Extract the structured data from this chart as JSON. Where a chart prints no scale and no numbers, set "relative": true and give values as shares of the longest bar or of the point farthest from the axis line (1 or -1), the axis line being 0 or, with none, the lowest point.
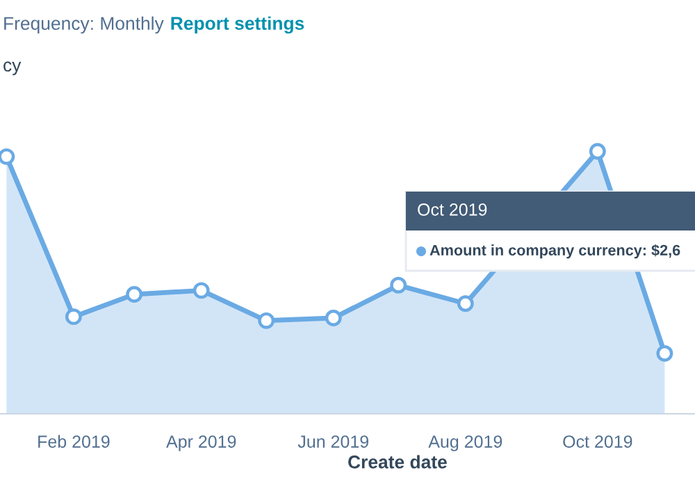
{
  "chart_data": {
    "type": "area",
    "title": "Frequency: Monthly",
    "xlabel": "Create date",
    "annotations": [
      "Report settings",
      "cy",
      "Oct 2019",
      "Amount in company currency: $2,6"
    ],
    "x": [
      "2019-01",
      "2019-02",
      "2019-03",
      "2019-04",
      "2019-05",
      "2019-06",
      "2019-07",
      "2019-08",
      "2019-09",
      "2019-10",
      "2019-11"
    ],
    "series": [
      {
        "color": "#6aaae4",
        "values": [
          0.98,
          0.37,
          0.455,
          0.47,
          0.355,
          0.365,
          0.49,
          0.42,
          null,
          1,
          0.23
        ]
      }
    ],
    "relative": true,
    "marker": "circle",
    "xlim": [
      "2018-12-29",
      "2019-11-15"
    ],
    "xticks": [
      {
        "value": "2019-02",
        "label": "Feb 2019"
      },
      {
        "value": "2019-04",
        "label": "Apr 2019"
      },
      {
        "value": "2019-06",
        "label": "Jun 2019"
      },
      {
        "value": "2019-08",
        "label": "Aug 2019"
      },
      {
        "value": "2019-10",
        "label": "Oct 2019"
      }
    ]
  }
}
